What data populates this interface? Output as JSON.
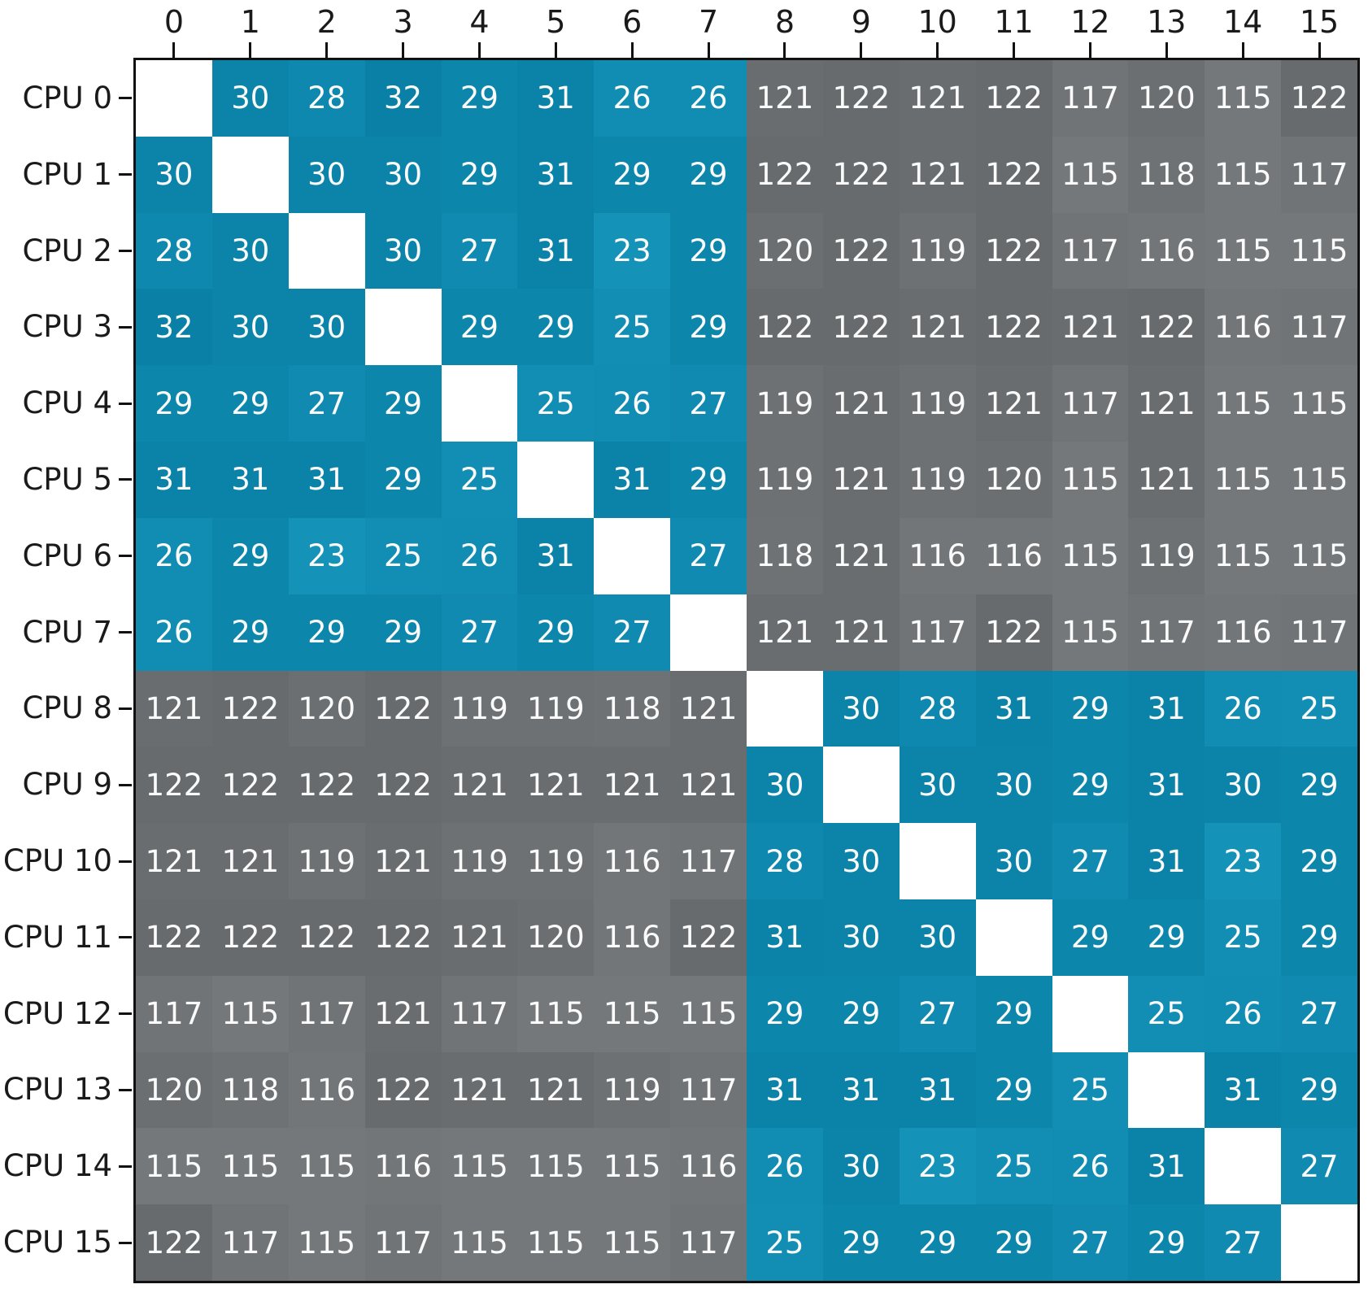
{
  "figure": {
    "background": "#ffffff"
  },
  "chart_data": {
    "type": "heatmap",
    "title": "",
    "xlabel": "",
    "ylabel": "",
    "legend_position": "none",
    "grid": false,
    "x_tick_labels": [
      "0",
      "1",
      "2",
      "3",
      "4",
      "5",
      "6",
      "7",
      "8",
      "9",
      "10",
      "11",
      "12",
      "13",
      "14",
      "15"
    ],
    "y_tick_labels": [
      "CPU 0",
      "CPU 1",
      "CPU 2",
      "CPU 3",
      "CPU 4",
      "CPU 5",
      "CPU 6",
      "CPU 7",
      "CPU 8",
      "CPU 9",
      "CPU 10",
      "CPU 11",
      "CPU 12",
      "CPU 13",
      "CPU 14",
      "CPU 15"
    ],
    "matrix": [
      [
        null,
        30,
        28,
        32,
        29,
        31,
        26,
        26,
        121,
        122,
        121,
        122,
        117,
        120,
        115,
        122
      ],
      [
        30,
        null,
        30,
        30,
        29,
        31,
        29,
        29,
        122,
        122,
        121,
        122,
        115,
        118,
        115,
        117
      ],
      [
        28,
        30,
        null,
        30,
        27,
        31,
        23,
        29,
        120,
        122,
        119,
        122,
        117,
        116,
        115,
        115
      ],
      [
        32,
        30,
        30,
        null,
        29,
        29,
        25,
        29,
        122,
        122,
        121,
        122,
        121,
        122,
        116,
        117
      ],
      [
        29,
        29,
        27,
        29,
        null,
        25,
        26,
        27,
        119,
        121,
        119,
        121,
        117,
        121,
        115,
        115
      ],
      [
        31,
        31,
        31,
        29,
        25,
        null,
        31,
        29,
        119,
        121,
        119,
        120,
        115,
        121,
        115,
        115
      ],
      [
        26,
        29,
        23,
        25,
        26,
        31,
        null,
        27,
        118,
        121,
        116,
        116,
        115,
        119,
        115,
        115
      ],
      [
        26,
        29,
        29,
        29,
        27,
        29,
        27,
        null,
        121,
        121,
        117,
        122,
        115,
        117,
        116,
        117
      ],
      [
        121,
        122,
        120,
        122,
        119,
        119,
        118,
        121,
        null,
        30,
        28,
        31,
        29,
        31,
        26,
        25
      ],
      [
        122,
        122,
        122,
        122,
        121,
        121,
        121,
        121,
        30,
        null,
        30,
        30,
        29,
        31,
        30,
        29
      ],
      [
        121,
        121,
        119,
        121,
        119,
        119,
        116,
        117,
        28,
        30,
        null,
        30,
        27,
        31,
        23,
        29
      ],
      [
        122,
        122,
        122,
        122,
        121,
        120,
        116,
        122,
        31,
        30,
        30,
        null,
        29,
        29,
        25,
        29
      ],
      [
        117,
        115,
        117,
        121,
        117,
        115,
        115,
        115,
        29,
        29,
        27,
        29,
        null,
        25,
        26,
        27
      ],
      [
        120,
        118,
        116,
        122,
        121,
        121,
        119,
        117,
        31,
        31,
        31,
        29,
        25,
        null,
        31,
        29
      ],
      [
        115,
        115,
        115,
        116,
        115,
        115,
        115,
        116,
        26,
        30,
        23,
        25,
        26,
        31,
        null,
        27
      ],
      [
        122,
        117,
        115,
        117,
        115,
        115,
        115,
        117,
        25,
        29,
        29,
        29,
        27,
        29,
        27,
        null
      ]
    ],
    "value_ranges": {
      "intra_cluster_min": 23,
      "intra_cluster_max": 32,
      "inter_cluster_min": 115,
      "inter_cluster_max": 122
    },
    "colors": {
      "intra_cluster_low": "#1492B8",
      "intra_cluster_high": "#0A80A6",
      "inter_cluster_low": "#74787B",
      "inter_cluster_high": "#676B6E",
      "diagonal": "#FFFFFF",
      "cell_text": "#FBFBFB",
      "tick_label": "#1A1A1A",
      "axis_border": "#111111"
    }
  }
}
